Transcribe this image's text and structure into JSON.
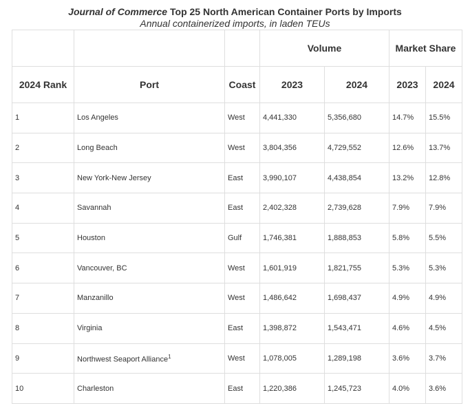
{
  "title": {
    "italic": "Journal of Commerce",
    "rest": " Top 25 North American Container Ports by Imports"
  },
  "subtitle": "Annual containerized imports, in laden TEUs",
  "headers": {
    "volume": "Volume",
    "market_share": "Market Share",
    "rank": "2024 Rank",
    "port": "Port",
    "coast": "Coast",
    "y2023": "2023",
    "y2024": "2024",
    "ms2023": "2023",
    "ms2024": "2024"
  },
  "rows": [
    {
      "rank": "1",
      "port": "Los Angeles",
      "sup": "",
      "coast": "West",
      "v2023": "4,441,330",
      "v2024": "5,356,680",
      "s2023": "14.7%",
      "s2024": "15.5%"
    },
    {
      "rank": "2",
      "port": "Long Beach",
      "sup": "",
      "coast": "West",
      "v2023": "3,804,356",
      "v2024": "4,729,552",
      "s2023": "12.6%",
      "s2024": "13.7%"
    },
    {
      "rank": "3",
      "port": "New York-New Jersey",
      "sup": "",
      "coast": "East",
      "v2023": "3,990,107",
      "v2024": "4,438,854",
      "s2023": "13.2%",
      "s2024": "12.8%"
    },
    {
      "rank": "4",
      "port": "Savannah",
      "sup": "",
      "coast": "East",
      "v2023": "2,402,328",
      "v2024": "2,739,628",
      "s2023": "7.9%",
      "s2024": "7.9%"
    },
    {
      "rank": "5",
      "port": "Houston",
      "sup": "",
      "coast": "Gulf",
      "v2023": "1,746,381",
      "v2024": "1,888,853",
      "s2023": "5.8%",
      "s2024": "5.5%"
    },
    {
      "rank": "6",
      "port": "Vancouver, BC",
      "sup": "",
      "coast": "West",
      "v2023": "1,601,919",
      "v2024": "1,821,755",
      "s2023": "5.3%",
      "s2024": "5.3%"
    },
    {
      "rank": "7",
      "port": "Manzanillo",
      "sup": "",
      "coast": "West",
      "v2023": "1,486,642",
      "v2024": "1,698,437",
      "s2023": "4.9%",
      "s2024": "4.9%"
    },
    {
      "rank": "8",
      "port": "Virginia",
      "sup": "",
      "coast": "East",
      "v2023": "1,398,872",
      "v2024": "1,543,471",
      "s2023": "4.6%",
      "s2024": "4.5%"
    },
    {
      "rank": "9",
      "port": "Northwest Seaport Alliance",
      "sup": "1",
      "coast": "West",
      "v2023": "1,078,005",
      "v2024": "1,289,198",
      "s2023": "3.6%",
      "s2024": "3.7%"
    },
    {
      "rank": "10",
      "port": "Charleston",
      "sup": "",
      "coast": "East",
      "v2023": "1,220,386",
      "v2024": "1,245,723",
      "s2023": "4.0%",
      "s2024": "3.6%"
    }
  ]
}
